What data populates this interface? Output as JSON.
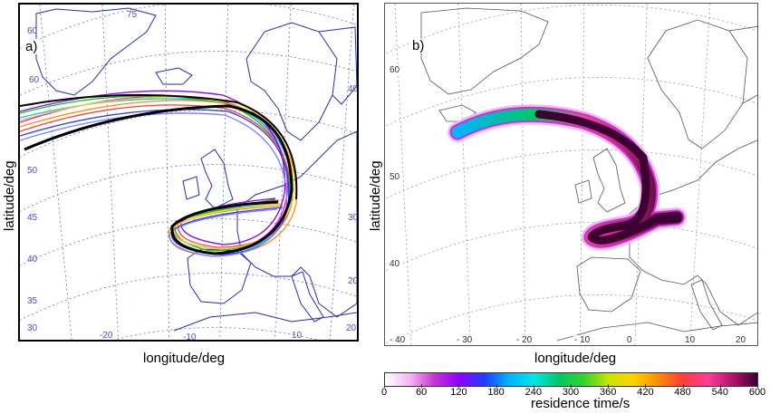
{
  "panel_a": {
    "label": "a)",
    "ylabel": "latitude/deg",
    "xlabel": "longitude/deg",
    "lat_ticks": [
      "60",
      "75",
      "60",
      "50",
      "45",
      "40",
      "35",
      "30",
      "20",
      "10"
    ],
    "lon_ticks": [
      "-20",
      "-10",
      "40",
      "30",
      "20"
    ]
  },
  "panel_b": {
    "label": "b)",
    "ylabel": "latitude/deg",
    "xlabel": "longitude/deg",
    "lat_ticks": [
      "60",
      "50",
      "40"
    ],
    "lon_ticks": [
      "- 40",
      "- 30",
      "- 20",
      "- 10",
      "0",
      "10",
      "20"
    ]
  },
  "colorbar": {
    "title": "residence time/s",
    "ticks": [
      "0",
      "60",
      "120",
      "180",
      "240",
      "300",
      "360",
      "420",
      "480",
      "540",
      "600"
    ],
    "min": 0,
    "max": 600,
    "colors": [
      "#ffffff",
      "#f3b6f2",
      "#c832d2",
      "#8c00ff",
      "#1e3cff",
      "#00b4ff",
      "#00e6e6",
      "#00c864",
      "#32d232",
      "#c8e600",
      "#ffd200",
      "#ff8c00",
      "#ff3c3c",
      "#ff3c9c",
      "#b4146e",
      "#3c0032"
    ]
  },
  "colors": {
    "coast_a": "#2a2ab8",
    "grid_a": "#6a6ad8",
    "coast_b": "#555555",
    "grid_b": "#9a9a9a"
  }
}
